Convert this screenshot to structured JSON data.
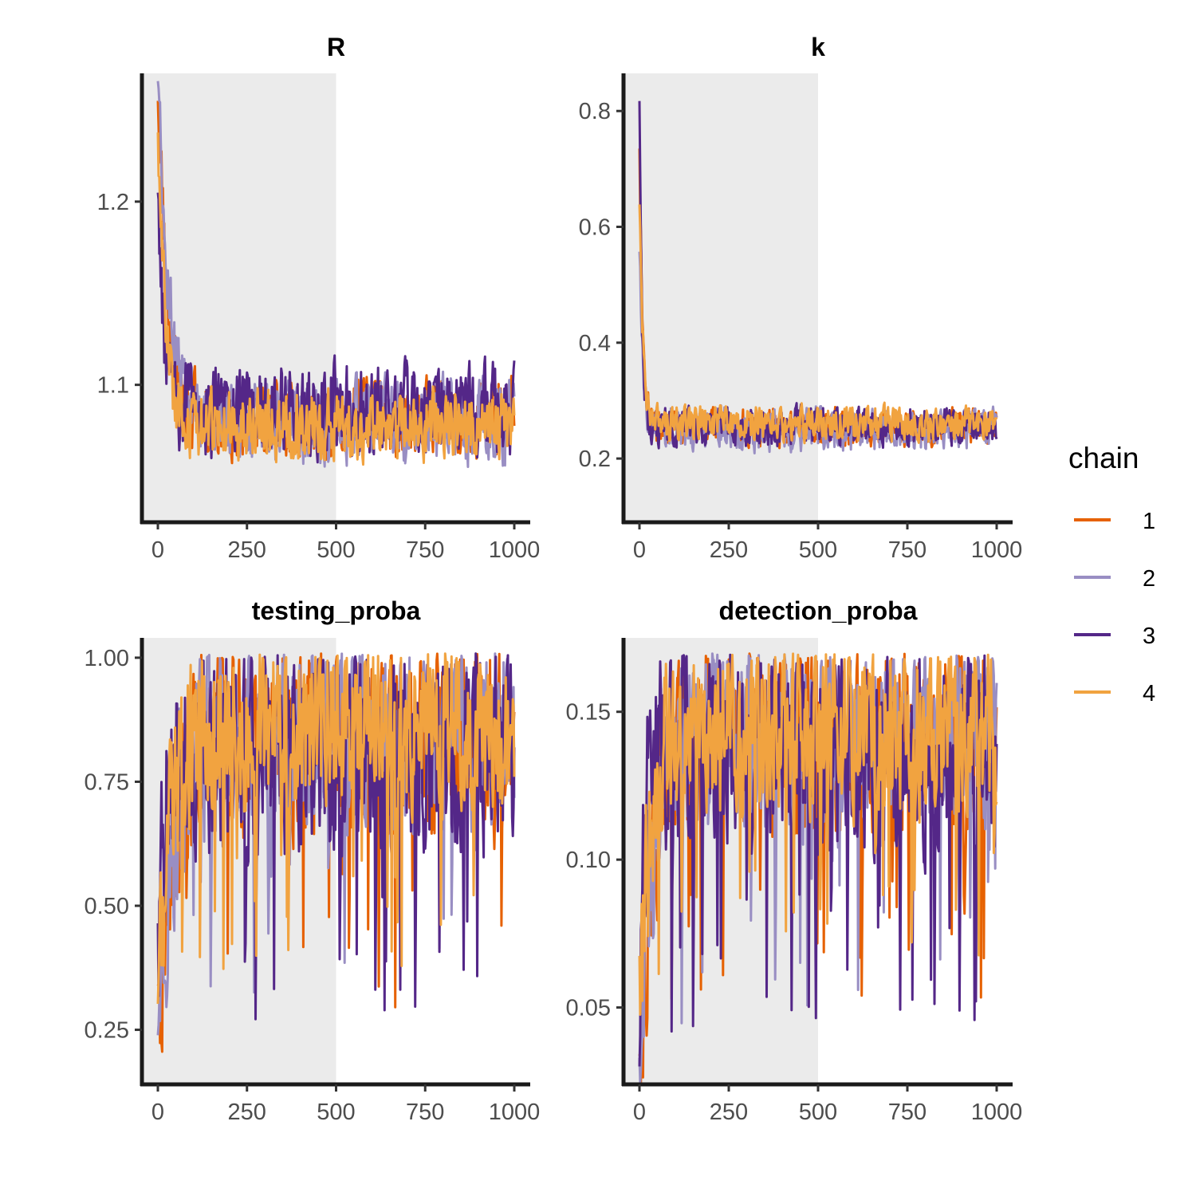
{
  "chart_data": {
    "type": "line",
    "layout": "2x2 facet grid of MCMC trace plots",
    "shaded_region": {
      "x_from": 0,
      "x_to": 500,
      "color": "#ebebeb"
    },
    "legend": {
      "title": "chain",
      "position": "right",
      "entries": [
        "1",
        "2",
        "3",
        "4"
      ]
    },
    "series_colors": {
      "1": "#e66101",
      "2": "#998ec3",
      "3": "#542788",
      "4": "#f1a340"
    },
    "x_ticks": [
      "0",
      "250",
      "500",
      "750",
      "1000"
    ],
    "xlim": [
      0,
      1000
    ],
    "panels": [
      {
        "title": "R",
        "ylim": [
          1.025,
          1.27
        ],
        "y_ticks": [
          "1.1",
          "1.2"
        ],
        "y_tick_values": [
          1.1,
          1.2
        ],
        "series": [
          {
            "name": "1",
            "start": 1.265,
            "level": 1.082,
            "noise": 0.018,
            "decay": 25
          },
          {
            "name": "2",
            "start": 1.255,
            "level": 1.08,
            "noise": 0.02,
            "decay": 30
          },
          {
            "name": "3",
            "start": 1.215,
            "level": 1.085,
            "noise": 0.022,
            "decay": 15
          },
          {
            "name": "4",
            "start": 1.24,
            "level": 1.078,
            "noise": 0.016,
            "decay": 20
          }
        ]
      },
      {
        "title": "k",
        "ylim": [
          0.09,
          0.865
        ],
        "y_ticks": [
          "0.2",
          "0.4",
          "0.6",
          "0.8"
        ],
        "y_tick_values": [
          0.2,
          0.4,
          0.6,
          0.8
        ],
        "series": [
          {
            "name": "1",
            "start": 0.72,
            "level": 0.255,
            "noise": 0.028,
            "decay": 8
          },
          {
            "name": "2",
            "start": 0.55,
            "level": 0.25,
            "noise": 0.032,
            "decay": 8
          },
          {
            "name": "3",
            "start": 0.83,
            "level": 0.255,
            "noise": 0.03,
            "decay": 6
          },
          {
            "name": "4",
            "start": 0.62,
            "level": 0.26,
            "noise": 0.026,
            "decay": 10
          }
        ]
      },
      {
        "title": "testing_proba",
        "ylim": [
          0.14,
          1.04
        ],
        "y_ticks": [
          "0.25",
          "0.50",
          "0.75",
          "1.00"
        ],
        "y_tick_values": [
          0.25,
          0.5,
          0.75,
          1.0
        ],
        "series": [
          {
            "name": "1",
            "start": 0.19,
            "level": 0.84,
            "noise": 0.17,
            "decay": 35
          },
          {
            "name": "2",
            "start": 0.24,
            "level": 0.84,
            "noise": 0.17,
            "decay": 40
          },
          {
            "name": "3",
            "start": 0.3,
            "level": 0.82,
            "noise": 0.18,
            "decay": 15
          },
          {
            "name": "4",
            "start": 0.26,
            "level": 0.86,
            "noise": 0.15,
            "decay": 30
          }
        ]
      },
      {
        "title": "detection_proba",
        "ylim": [
          0.024,
          0.175
        ],
        "y_ticks": [
          "0.05",
          "0.10",
          "0.15"
        ],
        "y_tick_values": [
          0.05,
          0.1,
          0.15
        ],
        "series": [
          {
            "name": "1",
            "start": 0.031,
            "level": 0.142,
            "noise": 0.028,
            "decay": 35
          },
          {
            "name": "2",
            "start": 0.04,
            "level": 0.142,
            "noise": 0.028,
            "decay": 40
          },
          {
            "name": "3",
            "start": 0.05,
            "level": 0.138,
            "noise": 0.03,
            "decay": 15
          },
          {
            "name": "4",
            "start": 0.044,
            "level": 0.145,
            "noise": 0.025,
            "decay": 30
          }
        ]
      }
    ]
  }
}
